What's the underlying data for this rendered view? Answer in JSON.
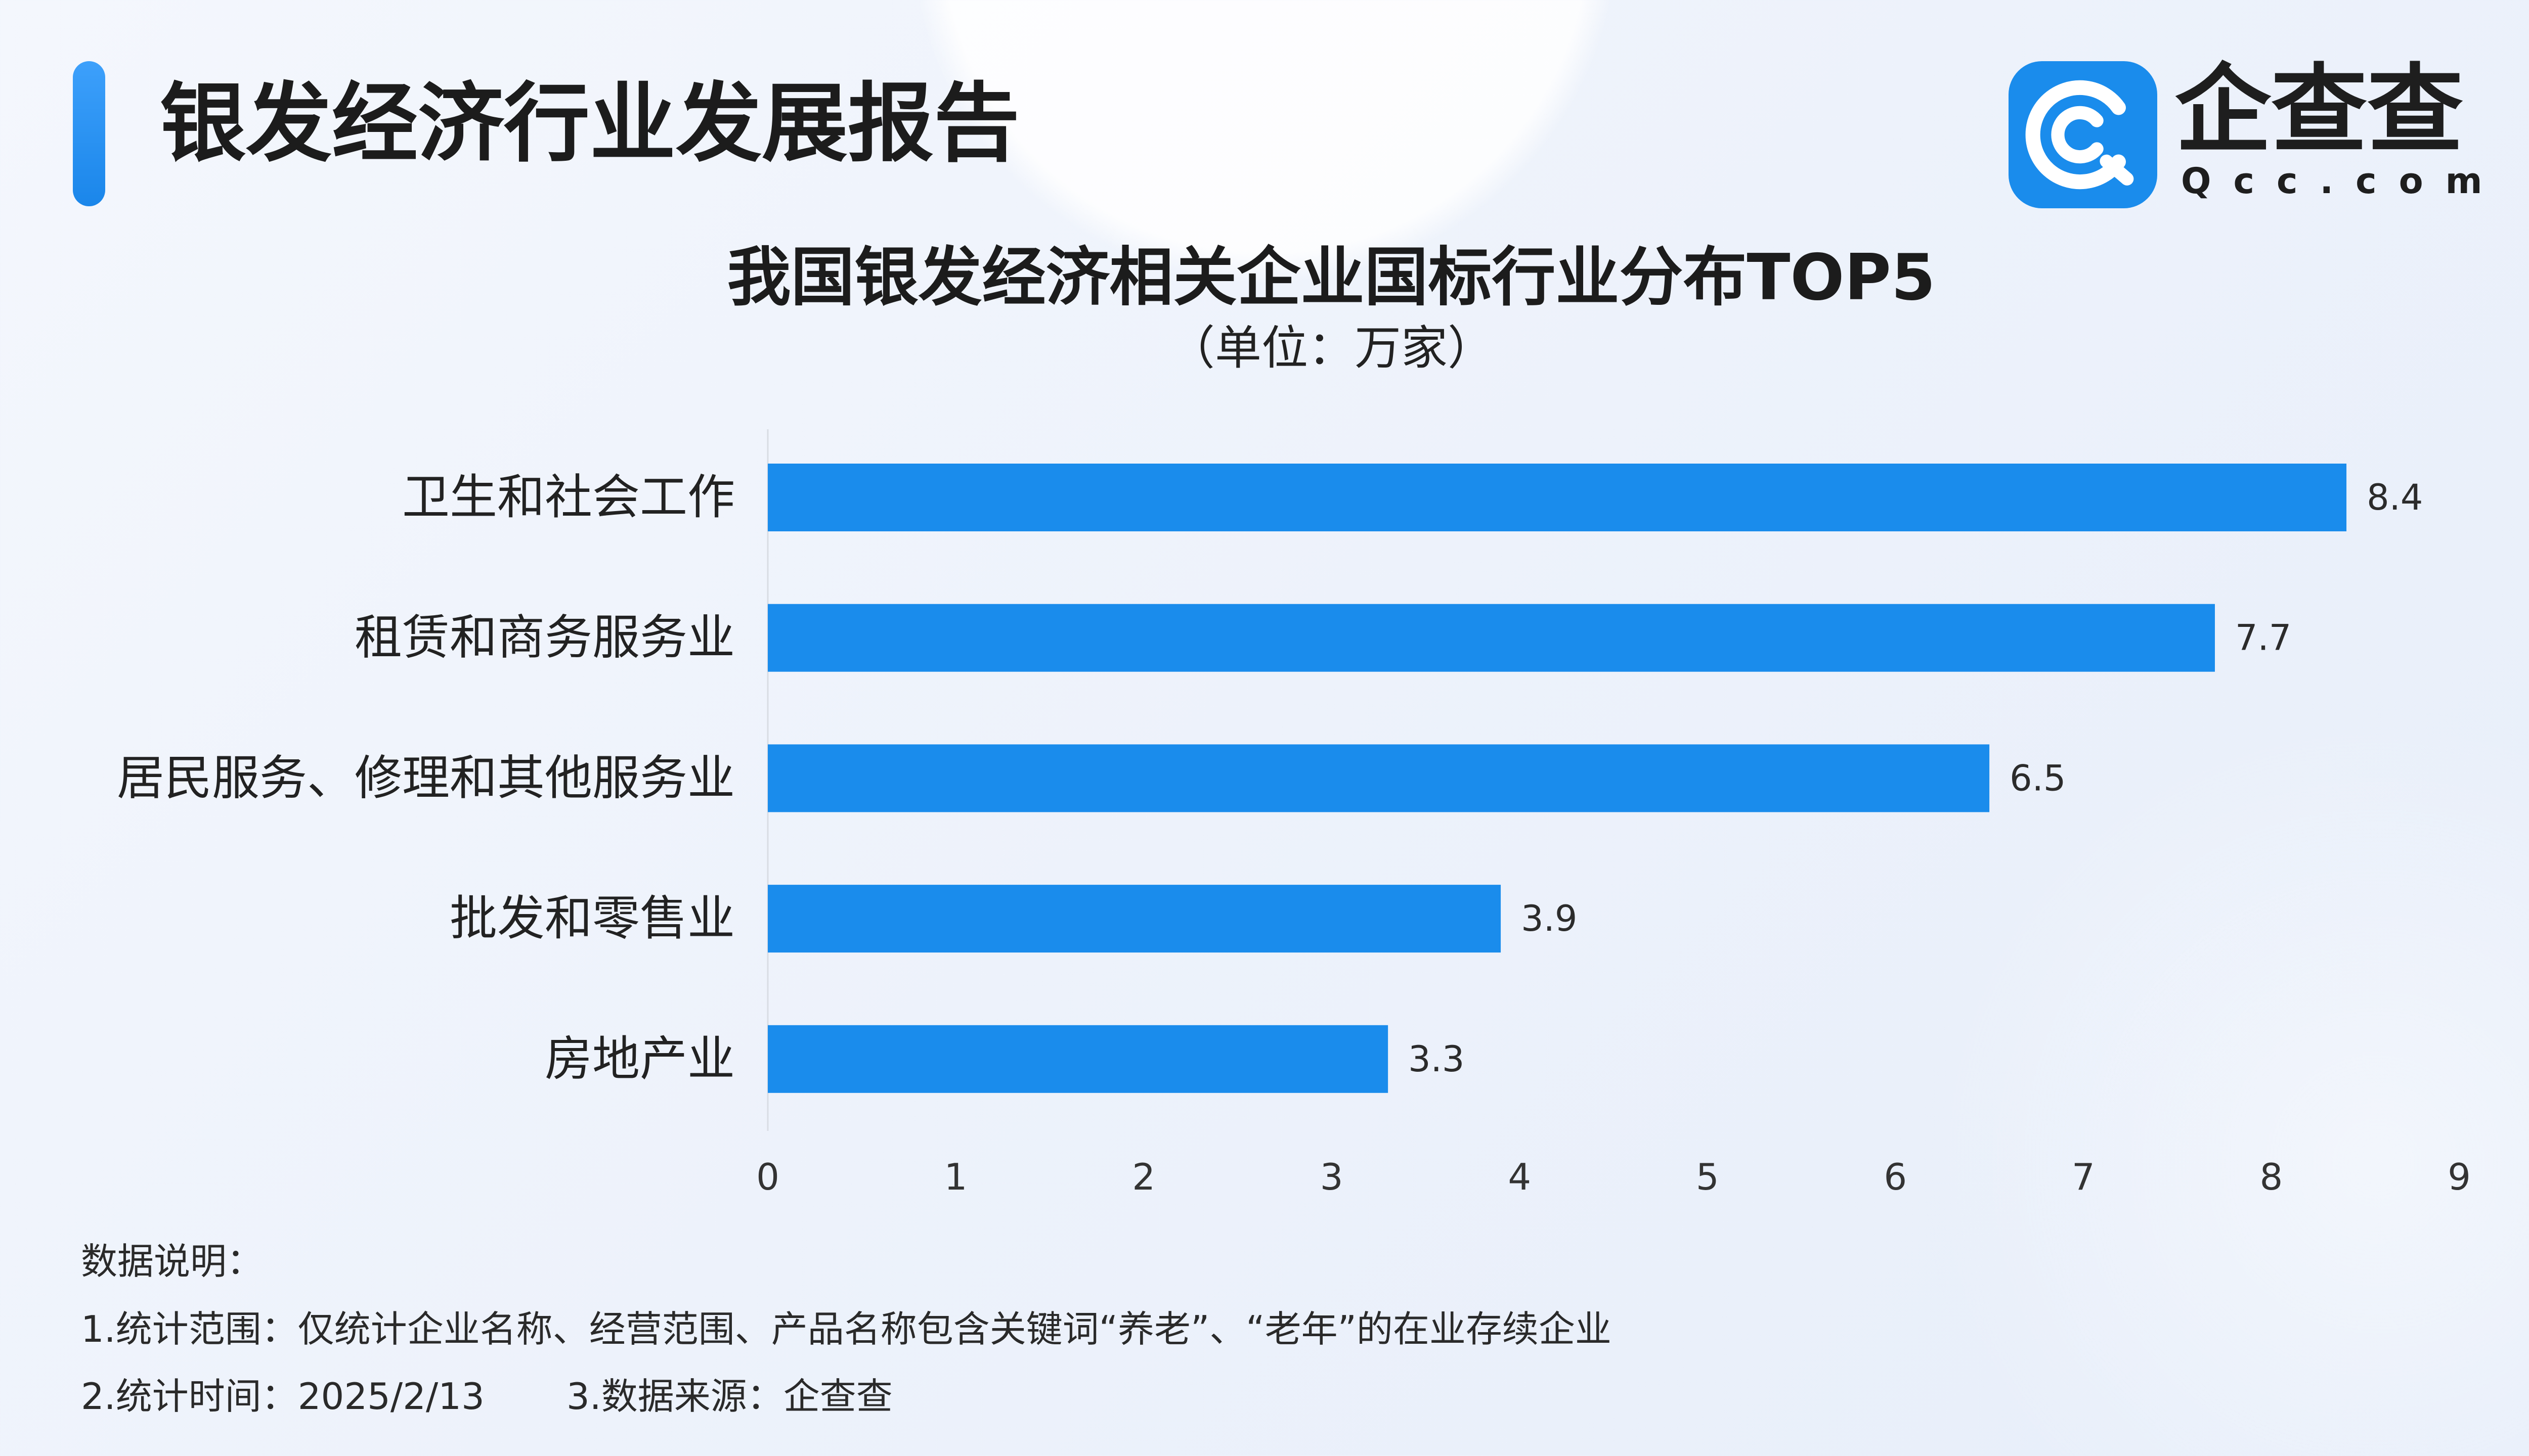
{
  "header": {
    "title": "银发经济行业发展报告"
  },
  "logo": {
    "icon": "qcc-logo-icon",
    "brand": "企查查",
    "domain": "Qcc.com"
  },
  "colors": {
    "accent": "#1a8cec",
    "text": "#1f1f1f",
    "background": "#eef3fb"
  },
  "chart_data": {
    "type": "bar",
    "orientation": "horizontal",
    "title": "我国银发经济相关企业国标行业分布TOP5",
    "subtitle": "（单位：万家）",
    "categories": [
      "卫生和社会工作",
      "租赁和商务服务业",
      "居民服务、修理和其他服务业",
      "批发和零售业",
      "房地产业"
    ],
    "values": [
      8.4,
      7.7,
      6.5,
      3.9,
      3.3
    ],
    "xlim": [
      0,
      9
    ],
    "xticks": [
      0,
      1,
      2,
      3,
      4,
      5,
      6,
      7,
      8,
      9
    ],
    "grid": false,
    "bar_color": "#1a8cec"
  },
  "notes": {
    "heading": "数据说明：",
    "scope": "1.统计范围：仅统计企业名称、经营范围、产品名称包含关键词“养老”、“老年”的在业存续企业",
    "time": "2.统计时间：2025/2/13",
    "source": "3.数据来源：企查查"
  }
}
